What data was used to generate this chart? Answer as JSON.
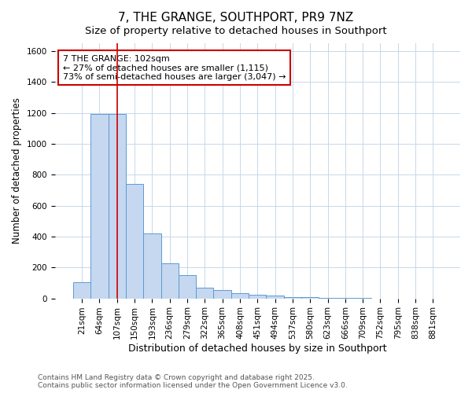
{
  "title": "7, THE GRANGE, SOUTHPORT, PR9 7NZ",
  "subtitle": "Size of property relative to detached houses in Southport",
  "xlabel": "Distribution of detached houses by size in Southport",
  "ylabel": "Number of detached properties",
  "categories": [
    "21sqm",
    "64sqm",
    "107sqm",
    "150sqm",
    "193sqm",
    "236sqm",
    "279sqm",
    "322sqm",
    "365sqm",
    "408sqm",
    "451sqm",
    "494sqm",
    "537sqm",
    "580sqm",
    "623sqm",
    "666sqm",
    "709sqm",
    "752sqm",
    "795sqm",
    "838sqm",
    "881sqm"
  ],
  "values": [
    105,
    1190,
    1190,
    740,
    420,
    225,
    150,
    70,
    55,
    35,
    25,
    20,
    10,
    10,
    5,
    5,
    5,
    0,
    0,
    0,
    0
  ],
  "bar_color": "#c5d8f0",
  "bar_edge_color": "#5b9bd5",
  "red_line_index": 2,
  "highlight_line_color": "#cc0000",
  "annotation_text": "7 THE GRANGE: 102sqm\n← 27% of detached houses are smaller (1,115)\n73% of semi-detached houses are larger (3,047) →",
  "ylim": [
    0,
    1650
  ],
  "yticks": [
    0,
    200,
    400,
    600,
    800,
    1000,
    1200,
    1400,
    1600
  ],
  "bg_color": "#ffffff",
  "plot_bg_color": "#ffffff",
  "grid_color": "#c8d8e8",
  "footer_text": "Contains HM Land Registry data © Crown copyright and database right 2025.\nContains public sector information licensed under the Open Government Licence v3.0.",
  "title_fontsize": 11,
  "subtitle_fontsize": 9.5,
  "xlabel_fontsize": 9,
  "ylabel_fontsize": 8.5,
  "tick_fontsize": 7.5,
  "annotation_fontsize": 8,
  "footer_fontsize": 6.5
}
